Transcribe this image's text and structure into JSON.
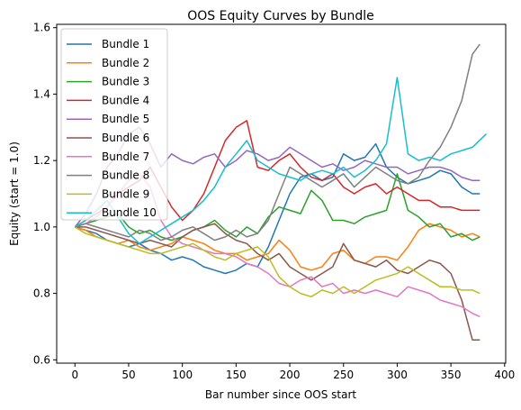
{
  "chart_data": {
    "type": "line",
    "title": "OOS Equity Curves by Bundle",
    "xlabel": "Bar number since OOS start",
    "ylabel": "Equity (start = 1.0)",
    "xlim": [
      -17,
      401
    ],
    "ylim": [
      0.59,
      1.61
    ],
    "xticks": [
      0,
      50,
      100,
      150,
      200,
      250,
      300,
      350,
      400
    ],
    "yticks": [
      0.6,
      0.8,
      1.0,
      1.2,
      1.4,
      1.6
    ],
    "xtick_labels": [
      "0",
      "50",
      "100",
      "150",
      "200",
      "250",
      "300",
      "350",
      "400"
    ],
    "ytick_labels": [
      "0.6",
      "0.8",
      "1.0",
      "1.2",
      "1.4",
      "1.6"
    ],
    "legend_position": "top-left",
    "grid": false,
    "series": [
      {
        "name": "Bundle 1",
        "color": "#1f77b4",
        "x": [
          0,
          10,
          20,
          30,
          40,
          50,
          60,
          70,
          80,
          90,
          100,
          110,
          120,
          130,
          140,
          150,
          160,
          170,
          180,
          190,
          200,
          210,
          220,
          230,
          240,
          250,
          260,
          270,
          280,
          290,
          300,
          310,
          320,
          330,
          340,
          350,
          360,
          370,
          377
        ],
        "y": [
          1.0,
          0.99,
          0.98,
          0.96,
          0.95,
          0.94,
          0.95,
          0.93,
          0.92,
          0.9,
          0.91,
          0.9,
          0.88,
          0.87,
          0.86,
          0.87,
          0.89,
          0.88,
          0.94,
          1.02,
          1.1,
          1.15,
          1.16,
          1.14,
          1.15,
          1.22,
          1.2,
          1.21,
          1.25,
          1.18,
          1.15,
          1.13,
          1.14,
          1.15,
          1.17,
          1.16,
          1.12,
          1.1,
          1.1
        ]
      },
      {
        "name": "Bundle 2",
        "color": "#ff7f0e",
        "x": [
          0,
          10,
          20,
          30,
          40,
          50,
          60,
          70,
          80,
          90,
          100,
          110,
          120,
          130,
          140,
          150,
          160,
          170,
          180,
          190,
          200,
          210,
          220,
          230,
          240,
          250,
          260,
          270,
          280,
          290,
          300,
          310,
          320,
          330,
          340,
          350,
          360,
          370,
          377
        ],
        "y": [
          1.0,
          0.99,
          0.97,
          0.96,
          0.95,
          0.96,
          0.94,
          0.93,
          0.94,
          0.95,
          0.97,
          0.96,
          0.95,
          0.93,
          0.92,
          0.92,
          0.9,
          0.91,
          0.92,
          0.96,
          0.93,
          0.88,
          0.87,
          0.88,
          0.92,
          0.93,
          0.9,
          0.89,
          0.91,
          0.91,
          0.9,
          0.94,
          0.99,
          1.01,
          1.0,
          0.99,
          0.97,
          0.98,
          0.97
        ]
      },
      {
        "name": "Bundle 3",
        "color": "#2ca02c",
        "x": [
          0,
          10,
          20,
          30,
          40,
          50,
          60,
          70,
          80,
          90,
          100,
          110,
          120,
          130,
          140,
          150,
          160,
          170,
          180,
          190,
          200,
          210,
          220,
          230,
          240,
          250,
          260,
          270,
          280,
          290,
          300,
          310,
          320,
          330,
          340,
          350,
          360,
          370,
          377
        ],
        "y": [
          1.0,
          1.01,
          1.02,
          1.03,
          1.04,
          1.0,
          0.98,
          0.99,
          0.97,
          0.96,
          0.97,
          0.99,
          1.0,
          1.02,
          0.99,
          0.97,
          1.0,
          0.98,
          1.03,
          1.06,
          1.05,
          1.04,
          1.11,
          1.08,
          1.02,
          1.02,
          1.01,
          1.03,
          1.04,
          1.05,
          1.16,
          1.05,
          1.03,
          1.0,
          1.01,
          0.97,
          0.98,
          0.96,
          0.97
        ]
      },
      {
        "name": "Bundle 4",
        "color": "#d62728",
        "x": [
          0,
          10,
          20,
          30,
          40,
          50,
          60,
          70,
          80,
          90,
          100,
          110,
          120,
          130,
          140,
          150,
          160,
          170,
          180,
          190,
          200,
          210,
          220,
          230,
          240,
          250,
          260,
          270,
          280,
          290,
          300,
          310,
          320,
          330,
          340,
          350,
          360,
          370,
          377
        ],
        "y": [
          1.0,
          1.02,
          1.04,
          1.06,
          1.1,
          1.12,
          1.14,
          1.18,
          1.12,
          1.06,
          1.02,
          1.05,
          1.1,
          1.18,
          1.26,
          1.3,
          1.32,
          1.18,
          1.17,
          1.2,
          1.22,
          1.18,
          1.15,
          1.14,
          1.16,
          1.12,
          1.1,
          1.12,
          1.13,
          1.1,
          1.12,
          1.1,
          1.08,
          1.08,
          1.06,
          1.06,
          1.05,
          1.05,
          1.05
        ]
      },
      {
        "name": "Bundle 5",
        "color": "#9467bd",
        "x": [
          0,
          10,
          20,
          30,
          40,
          50,
          60,
          70,
          80,
          90,
          100,
          110,
          120,
          130,
          140,
          150,
          160,
          170,
          180,
          190,
          200,
          210,
          220,
          230,
          240,
          250,
          260,
          270,
          280,
          290,
          300,
          310,
          320,
          330,
          340,
          350,
          360,
          370,
          377
        ],
        "y": [
          1.0,
          1.04,
          1.1,
          1.18,
          1.22,
          1.28,
          1.3,
          1.25,
          1.18,
          1.22,
          1.2,
          1.19,
          1.21,
          1.22,
          1.18,
          1.2,
          1.23,
          1.22,
          1.2,
          1.21,
          1.24,
          1.22,
          1.2,
          1.18,
          1.19,
          1.17,
          1.18,
          1.2,
          1.19,
          1.18,
          1.18,
          1.16,
          1.17,
          1.18,
          1.18,
          1.17,
          1.15,
          1.14,
          1.14
        ]
      },
      {
        "name": "Bundle 6",
        "color": "#8c564b",
        "x": [
          0,
          10,
          20,
          30,
          40,
          50,
          60,
          70,
          80,
          90,
          100,
          110,
          120,
          130,
          140,
          150,
          160,
          170,
          180,
          190,
          200,
          210,
          220,
          230,
          240,
          250,
          260,
          270,
          280,
          290,
          300,
          310,
          320,
          330,
          340,
          350,
          360,
          370,
          377
        ],
        "y": [
          1.0,
          1.0,
          0.99,
          0.98,
          0.97,
          0.96,
          0.95,
          0.96,
          0.95,
          0.94,
          0.97,
          0.99,
          1.0,
          1.01,
          0.98,
          0.96,
          0.95,
          0.92,
          0.9,
          0.92,
          0.88,
          0.86,
          0.84,
          0.86,
          0.88,
          0.95,
          0.9,
          0.89,
          0.88,
          0.9,
          0.87,
          0.86,
          0.88,
          0.9,
          0.89,
          0.86,
          0.78,
          0.66,
          0.66
        ]
      },
      {
        "name": "Bundle 7",
        "color": "#e377c2",
        "x": [
          0,
          10,
          20,
          30,
          40,
          50,
          60,
          70,
          80,
          90,
          100,
          110,
          120,
          130,
          140,
          150,
          160,
          170,
          180,
          190,
          200,
          210,
          220,
          230,
          240,
          250,
          260,
          270,
          280,
          290,
          300,
          310,
          320,
          330,
          340,
          350,
          360,
          370,
          377
        ],
        "y": [
          1.0,
          1.01,
          1.03,
          1.06,
          1.1,
          1.14,
          1.16,
          1.12,
          1.02,
          0.97,
          0.95,
          0.94,
          0.93,
          0.92,
          0.92,
          0.91,
          0.89,
          0.88,
          0.86,
          0.83,
          0.82,
          0.84,
          0.85,
          0.82,
          0.83,
          0.8,
          0.81,
          0.8,
          0.81,
          0.8,
          0.79,
          0.82,
          0.81,
          0.8,
          0.78,
          0.77,
          0.76,
          0.74,
          0.73
        ]
      },
      {
        "name": "Bundle 8",
        "color": "#7f7f7f",
        "x": [
          0,
          10,
          20,
          30,
          40,
          50,
          60,
          70,
          80,
          90,
          100,
          110,
          120,
          130,
          140,
          150,
          160,
          170,
          180,
          190,
          200,
          210,
          220,
          230,
          240,
          250,
          260,
          270,
          280,
          290,
          300,
          310,
          320,
          330,
          340,
          350,
          360,
          370,
          377
        ],
        "y": [
          1.0,
          1.01,
          1.0,
          0.99,
          0.98,
          0.97,
          0.99,
          0.98,
          0.96,
          0.97,
          0.99,
          1.0,
          0.98,
          0.96,
          0.97,
          0.99,
          0.97,
          0.98,
          1.02,
          1.1,
          1.18,
          1.16,
          1.14,
          1.12,
          1.14,
          1.16,
          1.12,
          1.15,
          1.18,
          1.16,
          1.14,
          1.13,
          1.15,
          1.2,
          1.24,
          1.3,
          1.38,
          1.52,
          1.55
        ]
      },
      {
        "name": "Bundle 9",
        "color": "#bcbd22",
        "x": [
          0,
          10,
          20,
          30,
          40,
          50,
          60,
          70,
          80,
          90,
          100,
          110,
          120,
          130,
          140,
          150,
          160,
          170,
          180,
          190,
          200,
          210,
          220,
          230,
          240,
          250,
          260,
          270,
          280,
          290,
          300,
          310,
          320,
          330,
          340,
          350,
          360,
          370,
          377
        ],
        "y": [
          1.0,
          0.98,
          0.97,
          0.96,
          0.95,
          0.94,
          0.93,
          0.92,
          0.92,
          0.93,
          0.94,
          0.95,
          0.93,
          0.91,
          0.9,
          0.92,
          0.93,
          0.94,
          0.91,
          0.85,
          0.82,
          0.8,
          0.79,
          0.81,
          0.8,
          0.82,
          0.8,
          0.82,
          0.84,
          0.85,
          0.86,
          0.88,
          0.86,
          0.84,
          0.82,
          0.82,
          0.81,
          0.81,
          0.8
        ]
      },
      {
        "name": "Bundle 10",
        "color": "#17becf",
        "x": [
          0,
          10,
          20,
          30,
          40,
          50,
          60,
          70,
          80,
          90,
          100,
          110,
          120,
          130,
          140,
          150,
          160,
          170,
          180,
          190,
          200,
          210,
          220,
          230,
          240,
          250,
          260,
          270,
          280,
          290,
          300,
          310,
          320,
          330,
          340,
          350,
          360,
          370,
          383
        ],
        "y": [
          1.0,
          1.02,
          1.05,
          1.08,
          1.03,
          0.98,
          0.95,
          0.97,
          0.99,
          1.01,
          1.03,
          1.05,
          1.08,
          1.12,
          1.18,
          1.22,
          1.26,
          1.2,
          1.18,
          1.16,
          1.15,
          1.14,
          1.16,
          1.17,
          1.16,
          1.18,
          1.15,
          1.17,
          1.2,
          1.25,
          1.45,
          1.22,
          1.2,
          1.21,
          1.2,
          1.22,
          1.23,
          1.24,
          1.28
        ]
      }
    ]
  }
}
